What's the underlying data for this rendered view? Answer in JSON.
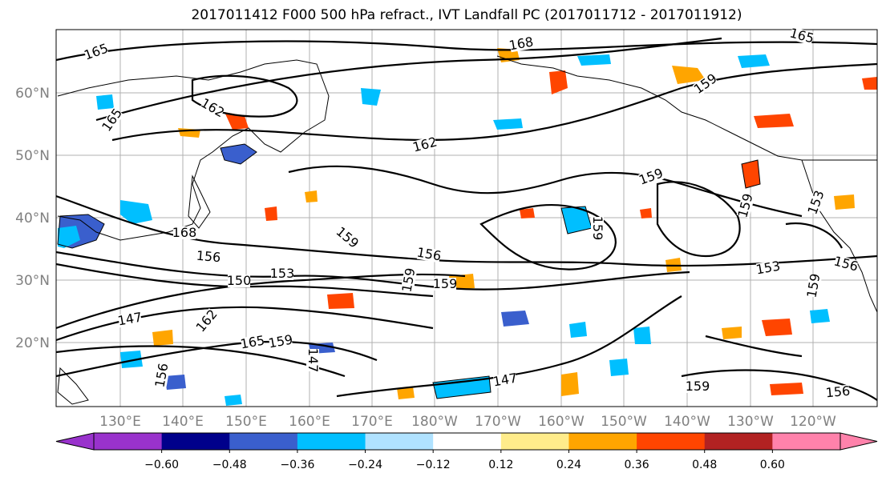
{
  "title": "2017011412 F000 500 hPa refract., IVT Landfall PC (2017011712 - 2017011912)",
  "map": {
    "lat_labels": [
      "60°N",
      "50°N",
      "40°N",
      "30°N",
      "20°N"
    ],
    "lon_labels": [
      "130°E",
      "140°E",
      "150°E",
      "160°E",
      "170°E",
      "180°W",
      "170°W",
      "160°W",
      "150°W",
      "140°W",
      "130°W",
      "120°W"
    ],
    "contour_labels": [
      "165",
      "168",
      "165",
      "162",
      "165",
      "162",
      "159",
      "159",
      "168",
      "156",
      "159",
      "156",
      "159",
      "159",
      "159",
      "150",
      "153",
      "159",
      "153",
      "156",
      "147",
      "162",
      "165",
      "159",
      "147",
      "147",
      "156",
      "159",
      "156",
      "153",
      "159"
    ],
    "colors": {
      "background": "#ffffff",
      "grid": "#b0b0b0",
      "contour": "#000000",
      "axis_label": "#808080"
    }
  },
  "colorbar": {
    "tick_labels": [
      "−0.60",
      "−0.48",
      "−0.36",
      "−0.24",
      "−0.12",
      "0.12",
      "0.24",
      "0.36",
      "0.48",
      "0.60"
    ],
    "colors": [
      "#9932cc",
      "#00008b",
      "#3a5fcd",
      "#00bfff",
      "#b0e2ff",
      "#ffffff",
      "#ffec8b",
      "#ffa500",
      "#ff4500",
      "#b22222",
      "#ff82ab"
    ]
  }
}
